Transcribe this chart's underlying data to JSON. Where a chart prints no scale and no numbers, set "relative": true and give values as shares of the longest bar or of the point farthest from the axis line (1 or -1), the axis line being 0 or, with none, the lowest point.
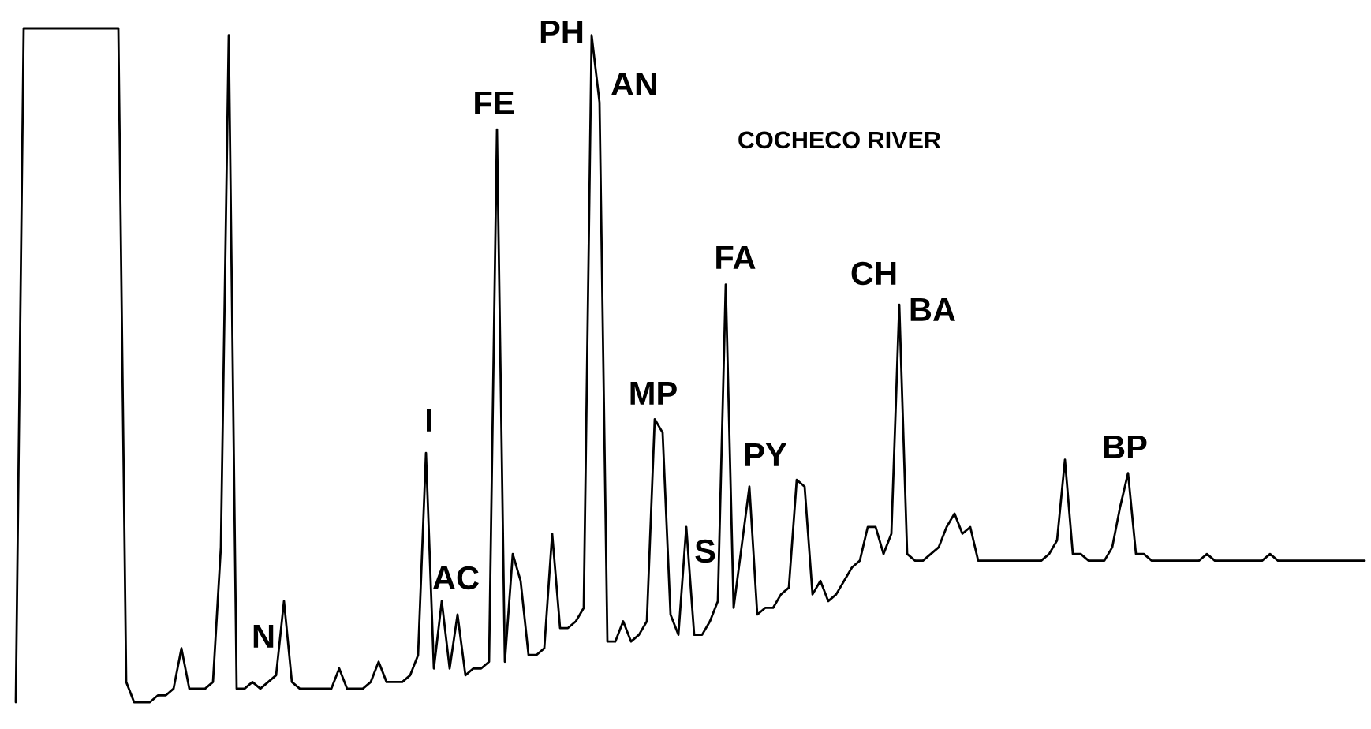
{
  "chart_data": {
    "type": "line",
    "relative": true,
    "title": "COCHECO RIVER",
    "annotations": [
      "FE",
      "PH",
      "AN",
      "I",
      "AC",
      "N",
      "MP",
      "S",
      "FA",
      "PY",
      "CH",
      "BA",
      "BP"
    ],
    "categories": [
      null,
      null,
      null,
      null,
      null,
      null,
      null,
      null,
      null,
      null,
      null,
      null,
      null,
      null,
      null,
      null,
      null,
      null,
      null,
      null,
      null,
      null,
      null,
      null,
      null,
      null,
      null,
      null,
      null,
      null,
      null,
      null,
      null,
      null,
      null,
      null,
      null,
      null,
      null,
      null,
      null,
      null,
      null,
      null,
      null,
      null,
      null,
      null,
      null,
      null,
      null,
      null,
      null,
      null,
      null,
      null,
      null,
      null,
      null,
      null,
      null,
      null,
      null,
      null,
      null,
      null,
      null,
      null,
      null,
      null,
      null,
      null,
      null,
      null,
      null,
      null,
      null,
      null,
      null,
      null,
      null,
      null,
      null,
      null,
      null,
      null,
      null,
      null,
      null,
      null,
      null,
      null,
      null,
      null,
      null,
      null,
      null,
      null,
      null,
      null,
      null,
      null,
      null,
      null,
      null,
      null,
      null,
      null,
      null,
      null,
      null,
      null,
      null,
      null,
      null,
      null,
      null,
      null,
      null,
      null,
      null,
      null,
      null,
      null,
      null,
      null,
      null,
      null,
      null,
      null,
      null,
      null,
      null,
      null,
      null,
      null,
      null,
      null,
      null,
      null,
      null,
      null,
      null,
      null,
      null,
      null,
      null,
      null,
      null,
      null,
      null,
      null,
      null,
      null,
      null,
      null,
      null,
      null,
      null,
      null,
      null,
      null,
      null,
      null,
      null,
      null,
      null,
      null,
      null,
      null,
      null,
      null
    ],
    "series": [
      {
        "color": "#000000",
        "values": [
          0.0,
          1.0,
          1.0,
          1.0,
          1.0,
          1.0,
          1.0,
          1.0,
          1.0,
          1.0,
          1.0,
          1.0,
          1.0,
          1.0,
          0.03,
          0.0,
          0.0,
          0.0,
          0.01,
          0.01,
          0.02,
          0.08,
          0.02,
          0.02,
          0.02,
          0.03,
          0.23,
          0.99,
          0.02,
          0.02,
          0.03,
          0.02,
          0.03,
          0.04,
          0.15,
          0.03,
          0.02,
          0.02,
          0.02,
          0.02,
          0.02,
          0.05,
          0.02,
          0.02,
          0.02,
          0.03,
          0.06,
          0.03,
          0.03,
          0.03,
          0.04,
          0.07,
          0.37,
          0.05,
          0.15,
          0.05,
          0.13,
          0.04,
          0.05,
          0.05,
          0.06,
          0.85,
          0.06,
          0.22,
          0.18,
          0.07,
          0.07,
          0.08,
          0.25,
          0.11,
          0.11,
          0.12,
          0.14,
          0.99,
          0.89,
          0.09,
          0.09,
          0.12,
          0.09,
          0.1,
          0.12,
          0.42,
          0.4,
          0.13,
          0.1,
          0.26,
          0.1,
          0.1,
          0.12,
          0.15,
          0.62,
          0.14,
          0.23,
          0.32,
          0.13,
          0.14,
          0.14,
          0.16,
          0.17,
          0.33,
          0.32,
          0.16,
          0.18,
          0.15,
          0.16,
          0.18,
          0.2,
          0.21,
          0.26,
          0.26,
          0.22,
          0.25,
          0.59,
          0.22,
          0.21,
          0.21,
          0.22,
          0.23,
          0.26,
          0.28,
          0.25,
          0.26,
          0.21,
          0.21,
          0.21,
          0.21,
          0.21,
          0.21,
          0.21,
          0.21,
          0.21,
          0.22,
          0.24,
          0.36,
          0.22,
          0.22,
          0.21,
          0.21,
          0.21,
          0.23,
          0.29,
          0.34,
          0.22,
          0.22,
          0.21,
          0.21,
          0.21,
          0.21,
          0.21,
          0.21,
          0.21,
          0.22,
          0.21,
          0.21,
          0.21,
          0.21,
          0.21,
          0.21,
          0.21,
          0.22,
          0.21,
          0.21,
          0.21,
          0.21,
          0.21,
          0.21,
          0.21,
          0.21,
          0.21,
          0.21,
          0.21,
          0.21
        ]
      }
    ]
  }
}
